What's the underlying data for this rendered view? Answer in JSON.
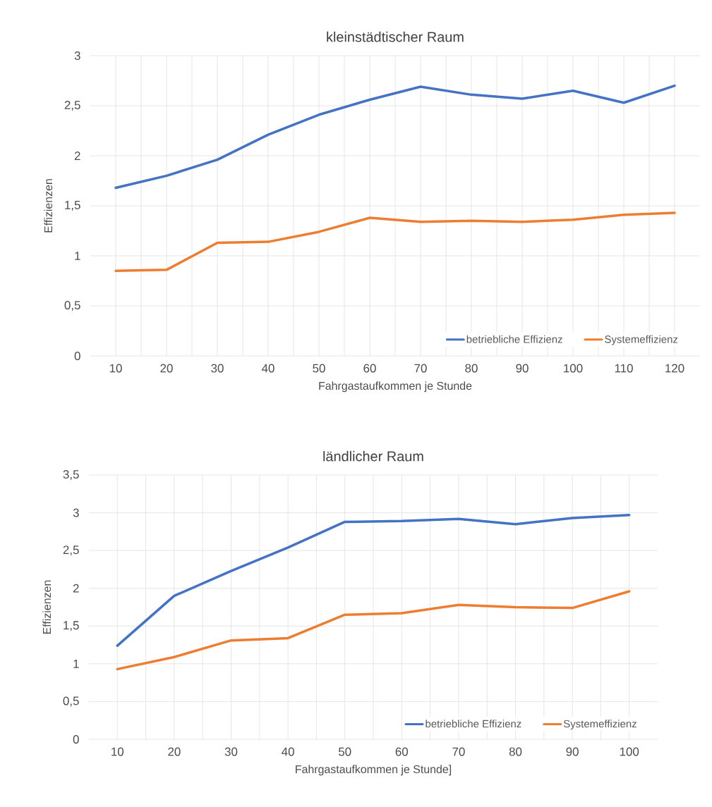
{
  "chart_data": [
    {
      "type": "line",
      "title": "kleinstädtischer Raum",
      "xlabel": "Fahrgastaufkommen je Stunde",
      "ylabel": "Effizienzen",
      "categories": [
        "10",
        "20",
        "30",
        "40",
        "50",
        "60",
        "70",
        "80",
        "90",
        "100",
        "110",
        "120"
      ],
      "series": [
        {
          "name": "betriebliche Effizienz",
          "color": "#4472c4",
          "values": [
            1.68,
            1.8,
            1.96,
            2.21,
            2.41,
            2.56,
            2.69,
            2.61,
            2.57,
            2.65,
            2.53,
            2.7
          ]
        },
        {
          "name": "Systemeffizienz",
          "color": "#ed7d31",
          "values": [
            0.85,
            0.86,
            1.13,
            1.14,
            1.24,
            1.38,
            1.34,
            1.35,
            1.34,
            1.36,
            1.41,
            1.43
          ]
        }
      ],
      "ylim": [
        0,
        3
      ],
      "yticks": [
        0,
        {
          "value": 0.5,
          "label": "0,5"
        },
        1,
        {
          "value": 1.5,
          "label": "1,5"
        },
        2,
        {
          "value": 2.5,
          "label": "2,5"
        },
        3
      ],
      "grid": true,
      "legend": "bottom right",
      "marker": "none",
      "line_style": "solid"
    },
    {
      "type": "line",
      "title": "ländlicher Raum",
      "xlabel": "Fahrgastaufkommen je Stunde]",
      "ylabel": "Effizienzen",
      "categories": [
        "10",
        "20",
        "30",
        "40",
        "50",
        "60",
        "70",
        "80",
        "90",
        "100"
      ],
      "series": [
        {
          "name": "betriebliche Effizienz",
          "color": "#4472c4",
          "values": [
            1.24,
            1.9,
            2.23,
            2.54,
            2.88,
            2.89,
            2.92,
            2.85,
            2.93,
            2.97
          ]
        },
        {
          "name": "Systemeffizienz",
          "color": "#ed7d31",
          "values": [
            0.93,
            1.09,
            1.31,
            1.34,
            1.65,
            1.67,
            1.78,
            1.75,
            1.74,
            1.96
          ]
        }
      ],
      "ylim": [
        0,
        3.5
      ],
      "yticks": [
        0,
        {
          "value": 0.5,
          "label": "0,5"
        },
        1,
        {
          "value": 1.5,
          "label": "1,5"
        },
        2,
        {
          "value": 2.5,
          "label": "2,5"
        },
        3,
        {
          "value": 3.5,
          "label": "3,5"
        }
      ],
      "grid": true,
      "legend": "bottom right",
      "marker": "none",
      "line_style": "solid"
    }
  ]
}
